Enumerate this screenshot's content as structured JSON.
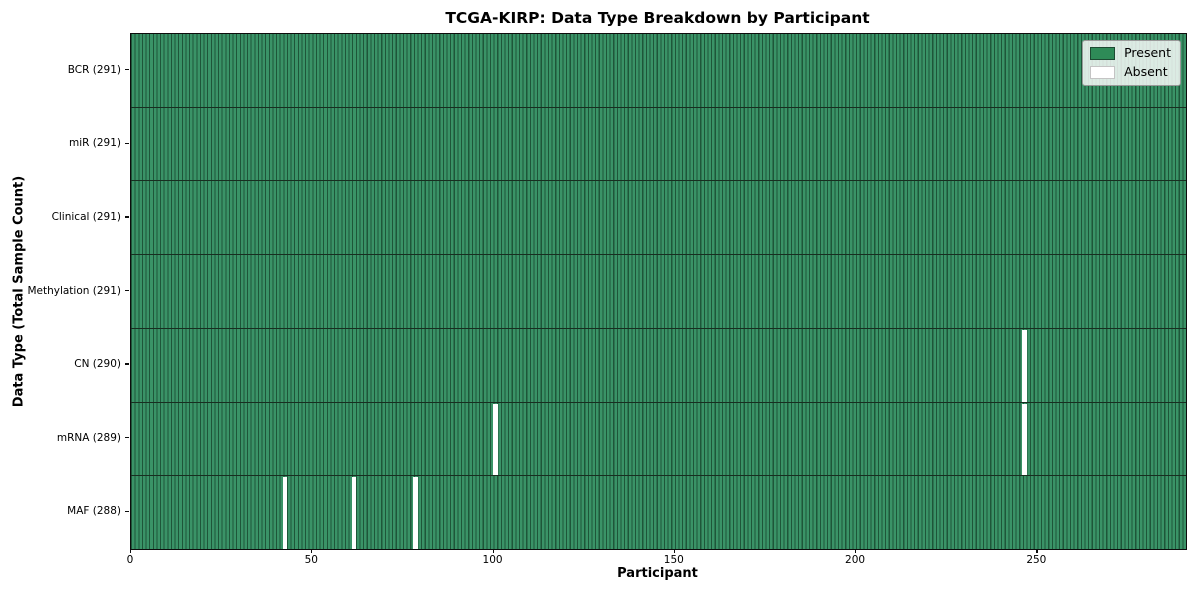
{
  "title": "TCGA-KIRP: Data Type Breakdown by Participant",
  "colors": {
    "present_fill": "#3a9367",
    "present_bar_edge": "#1e5639",
    "present_legend": "#2e8b57",
    "absent": "#ffffff",
    "row_separator": "#182e20",
    "plot_border": "#0d0d0d"
  },
  "chart_data": {
    "type": "heatmap",
    "title": "TCGA-KIRP: Data Type Breakdown by Participant",
    "xlabel": "Participant",
    "ylabel": "Data Type (Total Sample Count)",
    "legend": [
      "Present",
      "Absent"
    ],
    "legend_position": "upper right",
    "n_participants": 291,
    "xlim": [
      0,
      291
    ],
    "x_ticks": [
      0,
      50,
      100,
      150,
      200,
      250
    ],
    "grid": false,
    "rows": [
      {
        "label": "BCR (291)",
        "data_type": "BCR",
        "present_count": 291,
        "absent_participants": []
      },
      {
        "label": "miR (291)",
        "data_type": "miR",
        "present_count": 291,
        "absent_participants": []
      },
      {
        "label": "Clinical (291)",
        "data_type": "Clinical",
        "present_count": 291,
        "absent_participants": []
      },
      {
        "label": "Methylation (291)",
        "data_type": "Methylation",
        "present_count": 291,
        "absent_participants": []
      },
      {
        "label": "CN (290)",
        "data_type": "CN",
        "present_count": 290,
        "absent_participants": [
          246
        ]
      },
      {
        "label": "mRNA (289)",
        "data_type": "mRNA",
        "present_count": 289,
        "absent_participants": [
          100,
          246
        ]
      },
      {
        "label": "MAF (288)",
        "data_type": "MAF",
        "present_count": 288,
        "absent_participants": [
          42,
          61,
          78
        ]
      }
    ]
  }
}
